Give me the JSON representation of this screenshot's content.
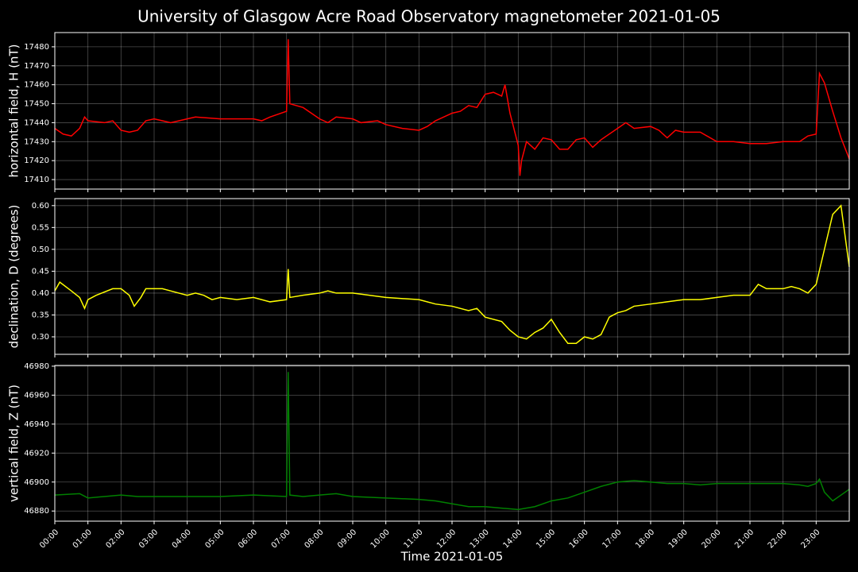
{
  "chart_data": [
    {
      "type": "line",
      "title": "University of Glasgow Acre Road Observatory magnetometer 2021-01-05",
      "ylabel": "horizontal field, H (nT)",
      "color": "#ff0000",
      "grid": true,
      "xlim": [
        0,
        24
      ],
      "ylim": [
        17405,
        17487.5
      ],
      "yticks": [
        17410,
        17420,
        17430,
        17440,
        17450,
        17460,
        17470,
        17480
      ],
      "x": [
        0,
        0.25,
        0.5,
        0.75,
        0.9,
        1,
        1.5,
        1.75,
        2,
        2.25,
        2.5,
        2.75,
        3,
        3.25,
        3.5,
        4,
        4.25,
        5,
        5.5,
        6,
        6.25,
        6.5,
        7,
        7.05,
        7.1,
        7.5,
        8,
        8.25,
        8.5,
        9,
        9.25,
        9.75,
        10,
        10.5,
        11,
        11.25,
        11.5,
        12,
        12.25,
        12.5,
        12.75,
        13,
        13.25,
        13.5,
        13.6,
        13.75,
        14,
        14.05,
        14.1,
        14.25,
        14.5,
        14.75,
        15,
        15.25,
        15.5,
        15.75,
        16,
        16.25,
        16.5,
        17,
        17.25,
        17.5,
        18,
        18.25,
        18.5,
        18.75,
        19,
        19.5,
        20,
        20.5,
        21,
        21.5,
        22,
        22.5,
        22.75,
        23,
        23.1,
        23.25,
        23.5,
        23.75,
        24
      ],
      "values": [
        17437,
        17434,
        17433,
        17437,
        17443,
        17441,
        17440,
        17441,
        17436,
        17435,
        17436,
        17441,
        17442,
        17441,
        17440,
        17442,
        17443,
        17442,
        17442,
        17442,
        17441,
        17443,
        17446,
        17484,
        17450,
        17448,
        17442,
        17440,
        17443,
        17442,
        17440,
        17441,
        17439,
        17437,
        17436,
        17438,
        17441,
        17445,
        17446,
        17449,
        17448,
        17455,
        17456,
        17454,
        17460,
        17445,
        17428,
        17412,
        17420,
        17430,
        17426,
        17432,
        17431,
        17426,
        17426,
        17431,
        17432,
        17427,
        17431,
        17437,
        17440,
        17437,
        17438,
        17436,
        17432,
        17436,
        17435,
        17435,
        17430,
        17430,
        17429,
        17429,
        17430,
        17430,
        17433,
        17434,
        17466,
        17461,
        17446,
        17432,
        17421
      ]
    },
    {
      "type": "line",
      "ylabel": "declination, D (degrees)",
      "color": "#ffff00",
      "grid": true,
      "xlim": [
        0,
        24
      ],
      "ylim": [
        0.26,
        0.616
      ],
      "yticks": [
        {
          "value": 0.3,
          "label": "0.30"
        },
        0.35,
        {
          "value": 0.4,
          "label": "0.40"
        },
        0.45,
        {
          "value": 0.5,
          "label": "0.50"
        },
        0.55,
        {
          "value": 0.6,
          "label": "0.60"
        }
      ],
      "x": [
        0,
        0.15,
        0.5,
        0.75,
        0.9,
        1,
        1.25,
        1.75,
        2,
        2.25,
        2.4,
        2.6,
        2.75,
        3.25,
        3.5,
        4,
        4.25,
        4.5,
        4.75,
        5,
        5.5,
        6,
        6.5,
        7,
        7.05,
        7.1,
        7.5,
        8,
        8.25,
        8.5,
        9,
        9.5,
        10,
        11,
        11.5,
        12,
        12.5,
        12.75,
        13,
        13.5,
        13.75,
        14,
        14.25,
        14.5,
        14.75,
        15,
        15.25,
        15.5,
        15.75,
        16,
        16.25,
        16.5,
        16.75,
        17,
        17.25,
        17.5,
        18,
        18.5,
        19,
        19.5,
        20,
        20.5,
        21,
        21.25,
        21.5,
        22,
        22.25,
        22.5,
        22.75,
        23,
        23.25,
        23.5,
        23.75,
        24
      ],
      "values": [
        0.405,
        0.425,
        0.405,
        0.39,
        0.365,
        0.385,
        0.395,
        0.41,
        0.41,
        0.395,
        0.37,
        0.39,
        0.41,
        0.41,
        0.405,
        0.395,
        0.4,
        0.395,
        0.385,
        0.39,
        0.385,
        0.39,
        0.38,
        0.385,
        0.455,
        0.39,
        0.395,
        0.4,
        0.405,
        0.4,
        0.4,
        0.395,
        0.39,
        0.385,
        0.375,
        0.37,
        0.36,
        0.365,
        0.345,
        0.335,
        0.315,
        0.3,
        0.295,
        0.31,
        0.32,
        0.34,
        0.31,
        0.285,
        0.285,
        0.3,
        0.295,
        0.305,
        0.345,
        0.355,
        0.36,
        0.37,
        0.375,
        0.38,
        0.385,
        0.385,
        0.39,
        0.395,
        0.395,
        0.42,
        0.41,
        0.41,
        0.415,
        0.41,
        0.4,
        0.42,
        0.5,
        0.58,
        0.6,
        0.46
      ]
    },
    {
      "type": "line",
      "ylabel": "vertical field, Z (nT)",
      "xlabel": "Time 2021-01-05",
      "color": "#008000",
      "grid": true,
      "xlim": [
        0,
        24
      ],
      "ylim": [
        46873,
        46980.5
      ],
      "yticks": [
        46880,
        46900,
        46920,
        46940,
        46960,
        46980
      ],
      "xticks": [
        {
          "value": 0,
          "label": "00:00"
        },
        {
          "value": 1,
          "label": "01:00"
        },
        {
          "value": 2,
          "label": "02:00"
        },
        {
          "value": 3,
          "label": "03:00"
        },
        {
          "value": 4,
          "label": "04:00"
        },
        {
          "value": 5,
          "label": "05:00"
        },
        {
          "value": 6,
          "label": "06:00"
        },
        {
          "value": 7,
          "label": "07:00"
        },
        {
          "value": 8,
          "label": "08:00"
        },
        {
          "value": 9,
          "label": "09:00"
        },
        {
          "value": 10,
          "label": "10:00"
        },
        {
          "value": 11,
          "label": "11:00"
        },
        {
          "value": 12,
          "label": "12:00"
        },
        {
          "value": 13,
          "label": "13:00"
        },
        {
          "value": 14,
          "label": "14:00"
        },
        {
          "value": 15,
          "label": "15:00"
        },
        {
          "value": 16,
          "label": "16:00"
        },
        {
          "value": 17,
          "label": "17:00"
        },
        {
          "value": 18,
          "label": "18:00"
        },
        {
          "value": 19,
          "label": "19:00"
        },
        {
          "value": 20,
          "label": "20:00"
        },
        {
          "value": 21,
          "label": "21:00"
        },
        {
          "value": 22,
          "label": "22:00"
        },
        {
          "value": 23,
          "label": "23:00"
        }
      ],
      "x": [
        0,
        0.75,
        1,
        1.5,
        2,
        2.5,
        3,
        4,
        5,
        6,
        7,
        7.05,
        7.1,
        7.5,
        8,
        8.5,
        9,
        10,
        11,
        11.5,
        12,
        12.5,
        13,
        13.5,
        14,
        14.5,
        15,
        15.5,
        16,
        16.5,
        17,
        17.5,
        18,
        18.5,
        19,
        19.5,
        20,
        20.5,
        21,
        21.5,
        22,
        22.5,
        22.75,
        23,
        23.1,
        23.25,
        23.5,
        23.75,
        24
      ],
      "values": [
        46891,
        46892,
        46889,
        46890,
        46891,
        46890,
        46890,
        46890,
        46890,
        46891,
        46890,
        46976,
        46891,
        46890,
        46891,
        46892,
        46890,
        46889,
        46888,
        46887,
        46885,
        46883,
        46883,
        46882,
        46881,
        46883,
        46887,
        46889,
        46893,
        46897,
        46900,
        46901,
        46900,
        46899,
        46899,
        46898,
        46899,
        46899,
        46899,
        46899,
        46899,
        46898,
        46897,
        46899,
        46902,
        46893,
        46887,
        46891,
        46895
      ]
    }
  ]
}
